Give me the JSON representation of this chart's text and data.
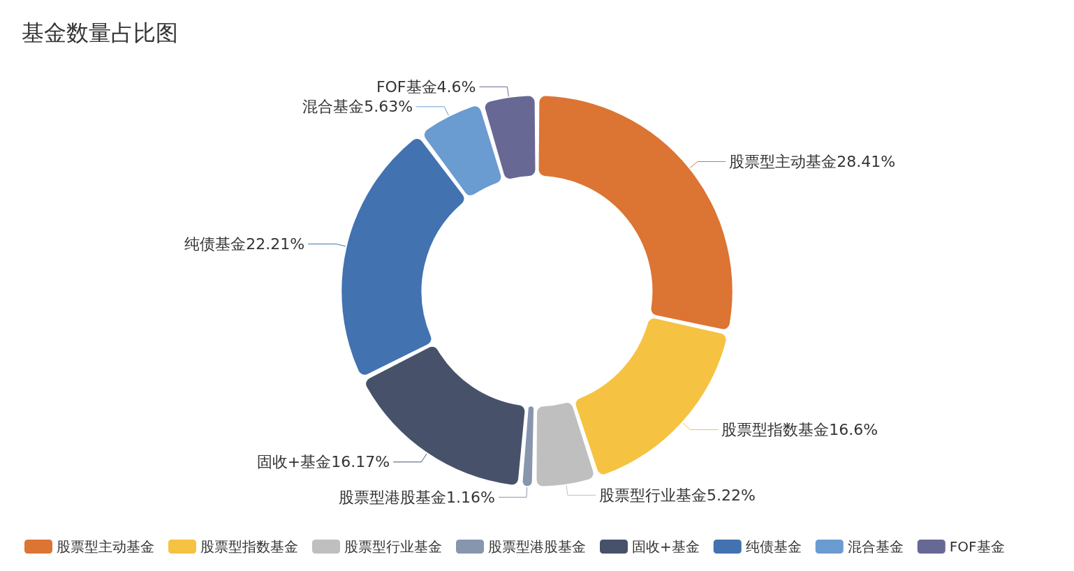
{
  "chart_data": {
    "type": "donut",
    "title": "基金数量占比图",
    "categories": [
      "股票型主动基金",
      "股票型指数基金",
      "股票型行业基金",
      "股票型港股基金",
      "固收+基金",
      "纯债基金",
      "混合基金",
      "FOF基金"
    ],
    "values": [
      28.41,
      16.6,
      5.22,
      1.16,
      16.17,
      22.21,
      5.63,
      4.6
    ],
    "value_labels": [
      "28.41%",
      "16.6%",
      "5.22%",
      "1.16%",
      "16.17%",
      "22.21%",
      "5.63%",
      "4.6%"
    ],
    "colors": [
      "#dc7433",
      "#f5c242",
      "#bfbfbf",
      "#8796ad",
      "#47526a",
      "#4272b0",
      "#6a9bd1",
      "#686895"
    ],
    "legend": "bottom"
  }
}
